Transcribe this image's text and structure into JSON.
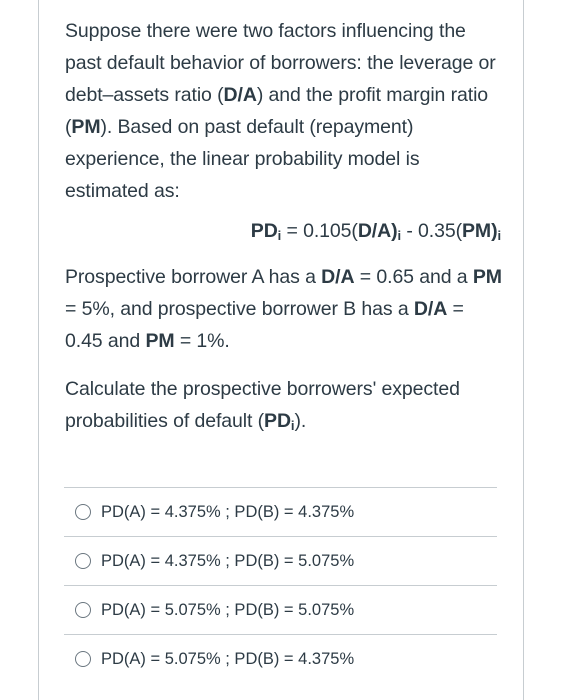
{
  "question": {
    "intro": {
      "part1": "Suppose there were two factors influencing the past default behavior of borrowers: the leverage or debt–assets ratio (",
      "da": "D/A",
      "part2": ") and the profit margin ratio (",
      "pm": "PM",
      "part3": "). Based on past default (repayment) experience, the linear probability model is estimated as:"
    },
    "equation": {
      "lhs": "PD",
      "sub_i": "i",
      "eq": " = 0.105(",
      "da": "D/A",
      "close": ")",
      "minus": " - 0.35(",
      "pm": "PM",
      "close2": ")"
    },
    "data": {
      "t1": "Prospective borrower A has a ",
      "da": "D/A",
      "t2": " = 0.65 and a ",
      "pm": "PM",
      "t3": " = 5%, and prospective borrower B has a ",
      "da2": "D/A",
      "t4": " = 0.45 and ",
      "pm2": "PM",
      "t5": " = 1%."
    },
    "ask": {
      "t1": "Calculate the prospective borrowers' expected probabilities of default (",
      "pd": "PD",
      "sub_i": "i",
      "t2": ")."
    }
  },
  "answers": [
    {
      "label": "PD(A) = 4.375% ; PD(B) = 4.375%"
    },
    {
      "label": "PD(A) = 4.375% ; PD(B) = 5.075%"
    },
    {
      "label": "PD(A) = 5.075% ; PD(B) = 5.075%"
    },
    {
      "label": "PD(A) = 5.075% ; PD(B) = 4.375%"
    }
  ]
}
